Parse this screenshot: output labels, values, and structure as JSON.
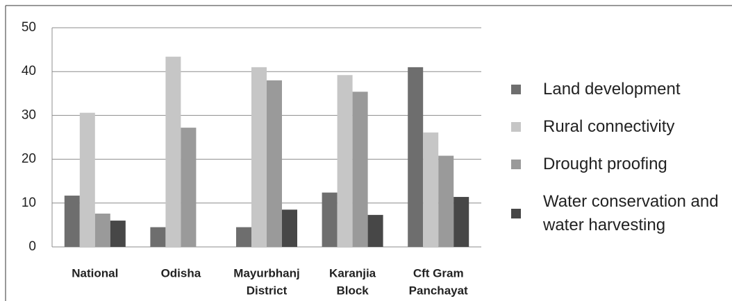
{
  "chart_data": {
    "type": "bar",
    "categories": [
      [
        "National"
      ],
      [
        "Odisha"
      ],
      [
        "Mayurbhanj",
        "District"
      ],
      [
        "Karanjia",
        "Block"
      ],
      [
        "Cft Gram",
        "Panchayat"
      ]
    ],
    "series": [
      {
        "name": "Land development",
        "color": "#6e6e6e",
        "values": [
          11.7,
          4.5,
          4.5,
          12.4,
          41
        ]
      },
      {
        "name": "Rural connectivity",
        "color": "#c6c6c6",
        "values": [
          30.6,
          43.4,
          41,
          39.2,
          26.1
        ]
      },
      {
        "name": "Drought proofing",
        "color": "#9a9a9a",
        "values": [
          7.6,
          27.2,
          38,
          35.4,
          20.8
        ]
      },
      {
        "name": "Water conservation and water harvesting",
        "color": "#474747",
        "values": [
          6,
          null,
          8.5,
          7.3,
          11.4
        ]
      }
    ],
    "ylim": [
      0,
      50
    ],
    "yticks": [
      0,
      10,
      20,
      30,
      40,
      50
    ],
    "grid": true,
    "legend": "right"
  }
}
